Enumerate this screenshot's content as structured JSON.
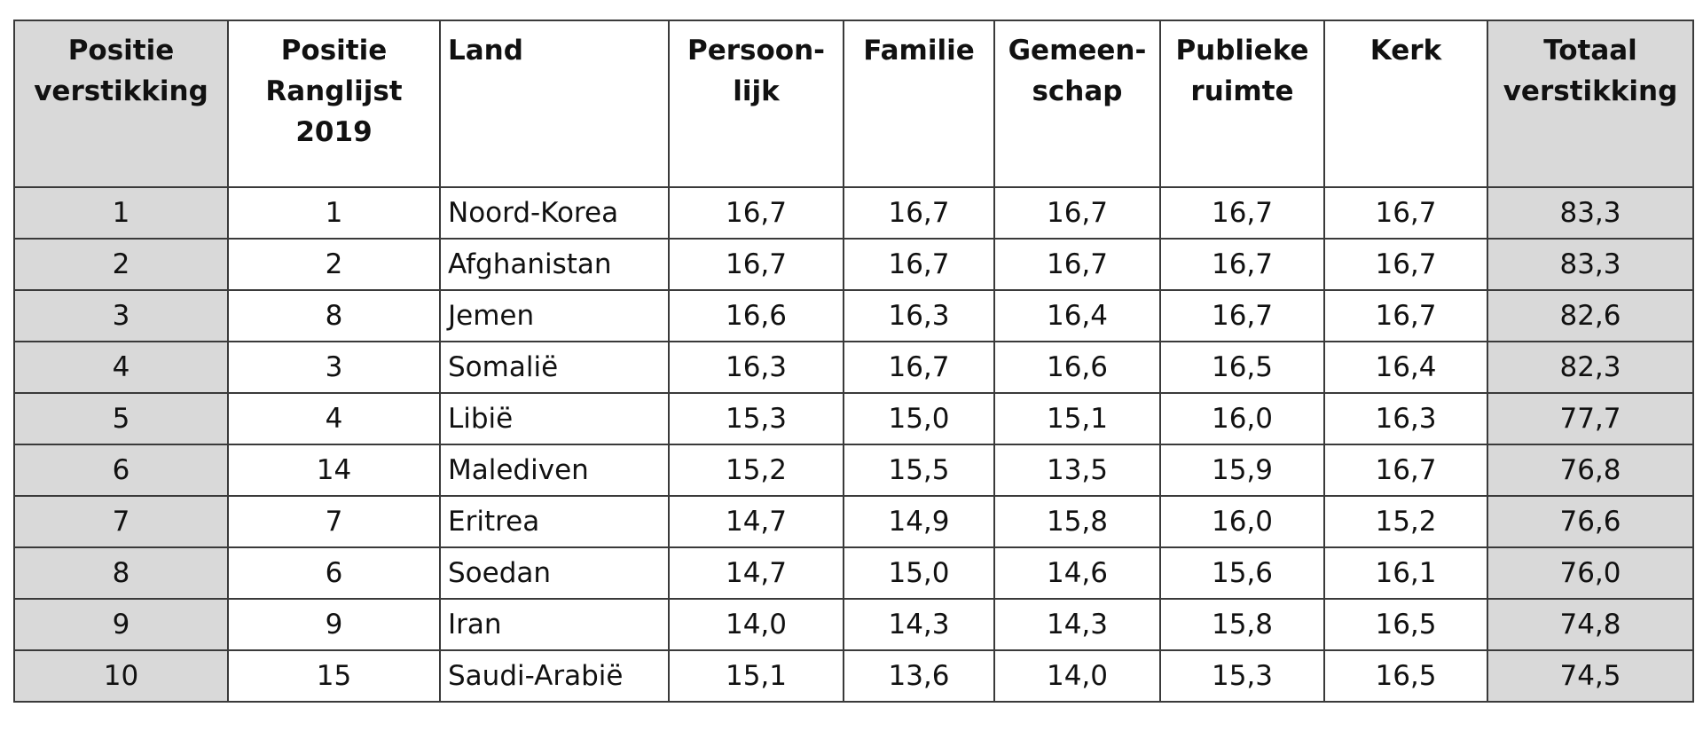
{
  "table": {
    "header": [
      "Positie\nverstikking",
      "Positie\nRanglijst\n2019",
      "Land",
      "Persoon-\nlijk",
      "Familie",
      "Gemeen-\nschap",
      "Publieke\nruimte",
      "Kerk",
      "Totaal\nverstikking"
    ],
    "rows": [
      [
        "1",
        "1",
        "Noord-Korea",
        "16,7",
        "16,7",
        "16,7",
        "16,7",
        "16,7",
        "83,3"
      ],
      [
        "2",
        "2",
        "Afghanistan",
        "16,7",
        "16,7",
        "16,7",
        "16,7",
        "16,7",
        "83,3"
      ],
      [
        "3",
        "8",
        "Jemen",
        "16,6",
        "16,3",
        "16,4",
        "16,7",
        "16,7",
        "82,6"
      ],
      [
        "4",
        "3",
        "Somaliё",
        "16,3",
        "16,7",
        "16,6",
        "16,5",
        "16,4",
        "82,3"
      ],
      [
        "5",
        "4",
        "Libiё",
        "15,3",
        "15,0",
        "15,1",
        "16,0",
        "16,3",
        "77,7"
      ],
      [
        "6",
        "14",
        "Malediven",
        "15,2",
        "15,5",
        "13,5",
        "15,9",
        "16,7",
        "76,8"
      ],
      [
        "7",
        "7",
        "Eritrea",
        "14,7",
        "14,9",
        "15,8",
        "16,0",
        "15,2",
        "76,6"
      ],
      [
        "8",
        "6",
        "Soedan",
        "14,7",
        "15,0",
        "14,6",
        "15,6",
        "16,1",
        "76,0"
      ],
      [
        "9",
        "9",
        "Iran",
        "14,0",
        "14,3",
        "14,3",
        "15,8",
        "16,5",
        "74,8"
      ],
      [
        "10",
        "15",
        "Saudi-Arabiё",
        "15,1",
        "13,6",
        "14,0",
        "15,3",
        "16,5",
        "74,5"
      ]
    ]
  }
}
